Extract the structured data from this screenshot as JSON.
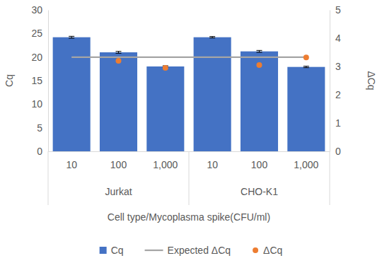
{
  "chart_data": {
    "type": "bar",
    "categories": [
      "10",
      "100",
      "1,000",
      "10",
      "100",
      "1,000"
    ],
    "groups": [
      "Jurkat",
      "Jurkat",
      "Jurkat",
      "CHO-K1",
      "CHO-K1",
      "CHO-K1"
    ],
    "x_label": "Cell type/Mycoplasma spike(CFU/ml)",
    "y_label": "Cq",
    "y2_label": "ΔCq",
    "ylim": [
      0,
      30
    ],
    "yticks": [
      0,
      5,
      10,
      15,
      20,
      25,
      30
    ],
    "y2lim": [
      0,
      5
    ],
    "y2ticks": [
      0,
      1,
      2,
      3,
      4,
      5
    ],
    "grid": false,
    "legend": "bottom",
    "series": [
      {
        "name": "Cq",
        "type": "bar",
        "color": "#4472c4",
        "values": [
          24.2,
          21.0,
          18.0,
          24.2,
          21.2,
          17.9
        ],
        "errors": [
          0.2,
          0.2,
          0.15,
          0.15,
          0.2,
          0.15
        ]
      },
      {
        "name": "Expected ΔCq",
        "type": "line",
        "color": "#a5a5a5",
        "axis": "y2",
        "values": [
          3.33,
          3.33,
          3.33,
          3.33,
          3.33,
          3.33
        ]
      },
      {
        "name": "ΔCq",
        "type": "scatter",
        "color": "#ed7d31",
        "axis": "y2",
        "marker": "circle",
        "values": [
          null,
          3.2,
          2.95,
          null,
          3.05,
          3.32
        ]
      }
    ]
  }
}
